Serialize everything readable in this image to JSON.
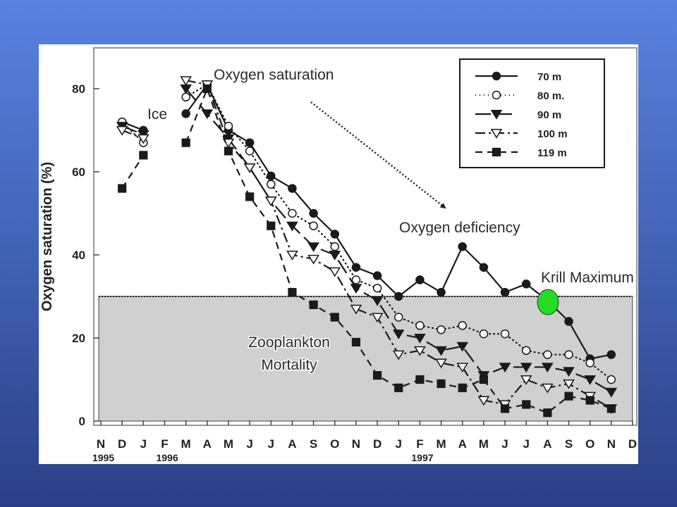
{
  "chart_data": {
    "type": "line",
    "ylabel": "Oxygen saturation (%)",
    "ylim": [
      0,
      85
    ],
    "y_ticks": [
      0,
      20,
      40,
      60,
      80
    ],
    "x_ticks": [
      "N",
      "D",
      "J",
      "F",
      "M",
      "A",
      "M",
      "J",
      "J",
      "A",
      "S",
      "O",
      "N",
      "D",
      "J",
      "F",
      "M",
      "A",
      "M",
      "J",
      "J",
      "A",
      "S",
      "O",
      "N",
      "D"
    ],
    "year_labels": [
      {
        "text": "1995",
        "tick_index": 0
      },
      {
        "text": "1996",
        "tick_index": 3
      },
      {
        "text": "1997",
        "tick_index": 15
      }
    ],
    "threshold": 30,
    "series": [
      {
        "name": "70 m",
        "marker": "circle-filled",
        "dash": "solid",
        "segments": [
          [
            [
              1,
              72
            ],
            [
              2,
              70
            ]
          ],
          [
            [
              4,
              74
            ],
            [
              5,
              81
            ],
            [
              6,
              70
            ],
            [
              7,
              67
            ],
            [
              8,
              59
            ],
            [
              9,
              56
            ],
            [
              10,
              50
            ],
            [
              11,
              45
            ],
            [
              12,
              37
            ],
            [
              13,
              35
            ],
            [
              14,
              30
            ],
            [
              15,
              34
            ],
            [
              16,
              31
            ],
            [
              17,
              42
            ],
            [
              18,
              37
            ],
            [
              19,
              31
            ],
            [
              20,
              33
            ],
            [
              21,
              29
            ],
            [
              22,
              24
            ],
            [
              23,
              15
            ],
            [
              24,
              16
            ]
          ]
        ]
      },
      {
        "name": "80 m.",
        "marker": "circle-open",
        "dash": "dotted",
        "segments": [
          [
            [
              1,
              72
            ],
            [
              2,
              67
            ]
          ],
          [
            [
              4,
              78
            ],
            [
              5,
              81
            ],
            [
              6,
              71
            ],
            [
              7,
              65
            ],
            [
              8,
              57
            ],
            [
              9,
              50
            ],
            [
              10,
              47
            ],
            [
              11,
              42
            ],
            [
              12,
              34
            ],
            [
              13,
              32
            ],
            [
              14,
              25
            ],
            [
              15,
              23
            ],
            [
              16,
              22
            ],
            [
              17,
              23
            ],
            [
              18,
              21
            ],
            [
              19,
              21
            ],
            [
              20,
              17
            ],
            [
              21,
              16
            ],
            [
              22,
              16
            ],
            [
              23,
              14
            ],
            [
              24,
              10
            ]
          ]
        ]
      },
      {
        "name": "90 m",
        "marker": "triangle-down-filled",
        "dash": "longdash",
        "segments": [
          [
            [
              1,
              71
            ],
            [
              2,
              69
            ]
          ],
          [
            [
              4,
              80
            ],
            [
              5,
              74
            ],
            [
              6,
              68
            ],
            [
              7,
              61
            ],
            [
              8,
              53
            ],
            [
              9,
              47
            ],
            [
              10,
              42
            ],
            [
              11,
              40
            ],
            [
              12,
              32
            ],
            [
              13,
              29
            ],
            [
              14,
              21
            ],
            [
              15,
              20
            ],
            [
              16,
              17
            ],
            [
              17,
              18
            ],
            [
              18,
              11
            ],
            [
              19,
              13
            ],
            [
              20,
              13
            ],
            [
              21,
              13
            ],
            [
              22,
              12
            ],
            [
              23,
              10
            ],
            [
              24,
              7
            ]
          ]
        ]
      },
      {
        "name": "100 m",
        "marker": "triangle-down-open",
        "dash": "dashdot",
        "segments": [
          [
            [
              1,
              70
            ],
            [
              2,
              68
            ]
          ],
          [
            [
              4,
              82
            ],
            [
              5,
              81
            ],
            [
              6,
              67
            ],
            [
              7,
              61
            ],
            [
              8,
              53
            ],
            [
              9,
              40
            ],
            [
              10,
              39
            ],
            [
              11,
              36
            ],
            [
              12,
              27
            ],
            [
              13,
              25
            ],
            [
              14,
              16
            ],
            [
              15,
              17
            ],
            [
              16,
              14
            ],
            [
              17,
              13
            ],
            [
              18,
              5
            ],
            [
              19,
              4
            ],
            [
              20,
              10
            ],
            [
              21,
              8
            ],
            [
              22,
              9
            ],
            [
              23,
              6
            ],
            [
              24,
              3
            ]
          ]
        ]
      },
      {
        "name": "119 m",
        "marker": "square-filled",
        "dash": "dashed",
        "segments": [
          [
            [
              1,
              56
            ],
            [
              2,
              64
            ]
          ],
          [
            [
              4,
              67
            ],
            [
              5,
              80
            ],
            [
              6,
              65
            ],
            [
              7,
              54
            ],
            [
              8,
              47
            ],
            [
              9,
              31
            ],
            [
              10,
              28
            ],
            [
              11,
              25
            ],
            [
              12,
              19
            ],
            [
              13,
              11
            ],
            [
              14,
              8
            ],
            [
              15,
              10
            ],
            [
              16,
              9
            ],
            [
              17,
              8
            ],
            [
              18,
              10
            ],
            [
              19,
              3
            ],
            [
              20,
              4
            ],
            [
              21,
              2
            ],
            [
              22,
              6
            ],
            [
              23,
              5
            ],
            [
              24,
              3
            ]
          ]
        ]
      }
    ]
  },
  "annotations": {
    "oxygen_saturation": "Oxygen saturation",
    "ice": "Ice",
    "oxygen_deficiency": "Oxygen deficiency",
    "krill_maximum": "Krill Maximum",
    "zooplankton_line1": "Zooplankton",
    "zooplankton_line2": "Mortality"
  },
  "colors": {
    "shaded_region": "#d0d0d0",
    "krill_marker": "#22dd22",
    "ink": "#222222"
  }
}
